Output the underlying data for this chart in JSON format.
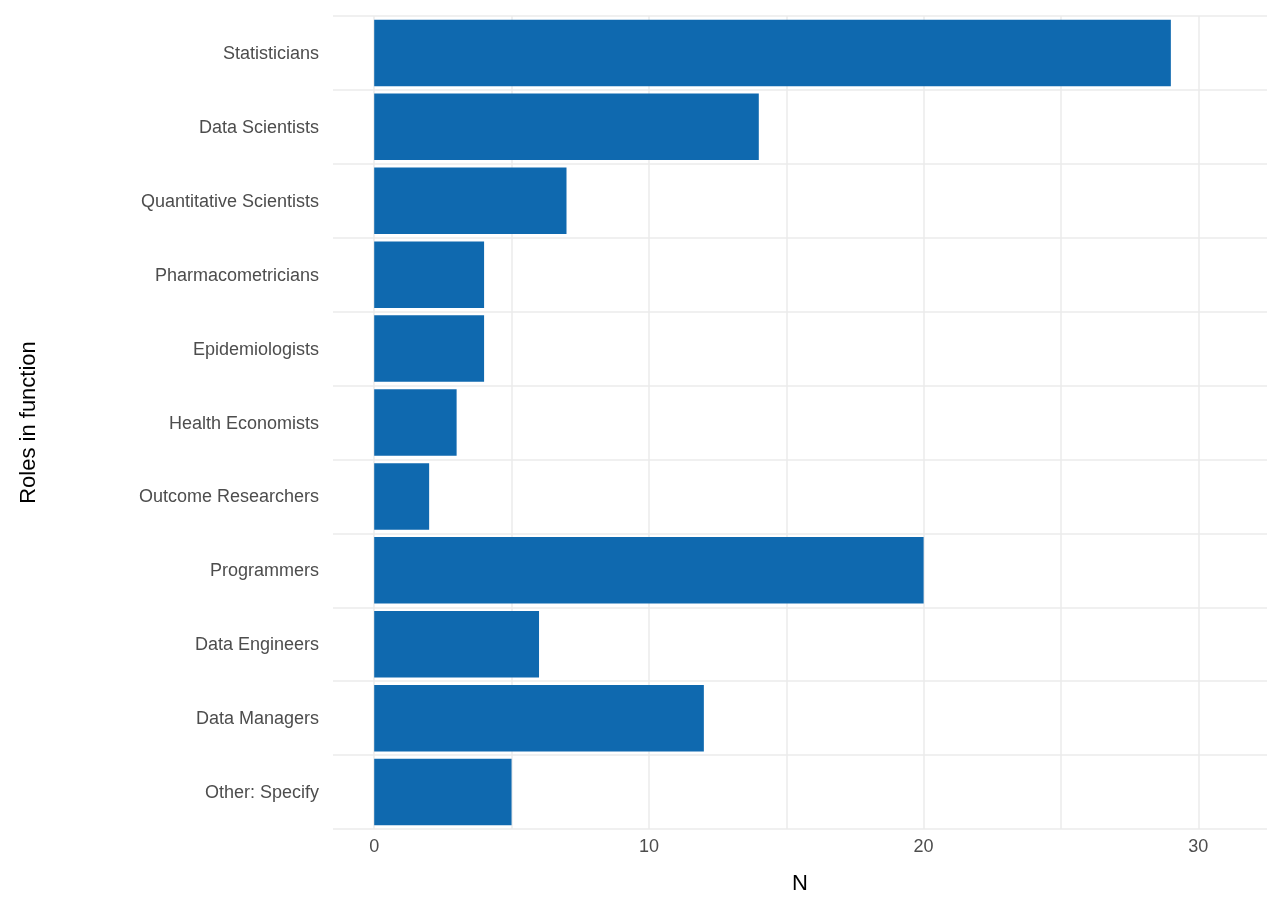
{
  "chart_data": {
    "type": "bar",
    "orientation": "horizontal",
    "xlabel": "N",
    "ylabel": "Roles in function",
    "categories": [
      "Statisticians",
      "Data Scientists",
      "Quantitative Scientists",
      "Pharmacometricians",
      "Epidemiologists",
      "Health Economists",
      "Outcome Researchers",
      "Programmers",
      "Data Engineers",
      "Data Managers",
      "Other: Specify"
    ],
    "values": [
      29,
      14,
      7,
      4,
      4,
      3,
      2,
      20,
      6,
      12,
      5
    ],
    "color": "#0f69af",
    "xlim": [
      -1.5,
      32.5
    ],
    "xticks": [
      0,
      {
        "value": 5,
        "label": null
      },
      10,
      {
        "value": 15,
        "label": null
      },
      20,
      {
        "value": 25,
        "label": null
      },
      30
    ],
    "grid": true
  }
}
